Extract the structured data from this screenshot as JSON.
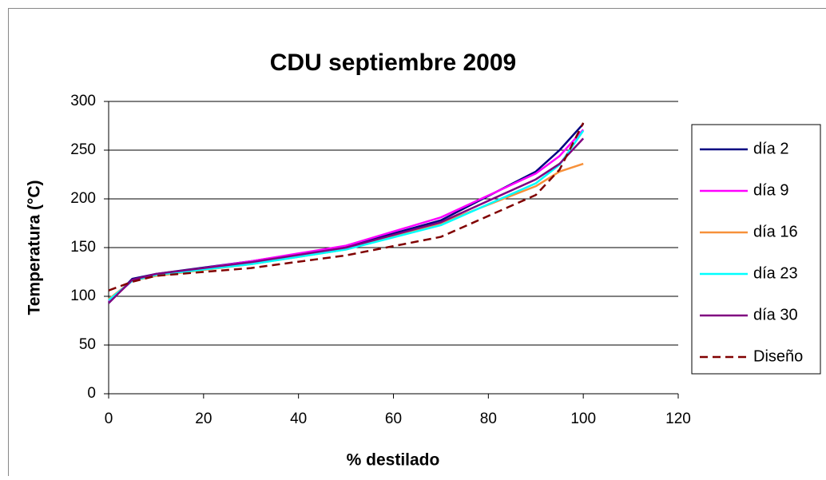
{
  "chart_data": {
    "type": "line",
    "title": "CDU septiembre 2009",
    "x_label": "% destilado",
    "y_label": "Temperatura (°C)",
    "x": [
      0,
      5,
      10,
      30,
      50,
      70,
      90,
      95,
      100
    ],
    "series": [
      {
        "name": "día 2",
        "color": "#000080",
        "values": [
          93,
          118,
          123,
          136,
          151,
          178,
          228,
          250,
          277
        ]
      },
      {
        "name": "día 9",
        "color": "#ff00ff",
        "values": [
          95,
          116,
          122,
          136,
          152,
          181,
          226,
          244,
          271
        ]
      },
      {
        "name": "día 16",
        "color": "#f7913a",
        "values": [
          97,
          116,
          121,
          133,
          148,
          175,
          213,
          228,
          236
        ]
      },
      {
        "name": "día 23",
        "color": "#00ffff",
        "values": [
          96,
          116,
          122,
          133,
          148,
          173,
          216,
          235,
          270
        ]
      },
      {
        "name": "día 30",
        "color": "#800080",
        "values": [
          93,
          117,
          123,
          135,
          150,
          176,
          220,
          236,
          262
        ]
      },
      {
        "name": "Diseño",
        "color": "#800000",
        "dashed": true,
        "values": [
          106,
          115,
          121,
          129,
          142,
          161,
          204,
          230,
          278
        ]
      }
    ],
    "xlim": [
      0,
      120
    ],
    "xticks": [
      0,
      20,
      40,
      60,
      80,
      100,
      120
    ],
    "ylim": [
      0,
      300
    ],
    "yticks": [
      0,
      50,
      100,
      150,
      200,
      250,
      300
    ],
    "grid": true,
    "legend": "right"
  }
}
